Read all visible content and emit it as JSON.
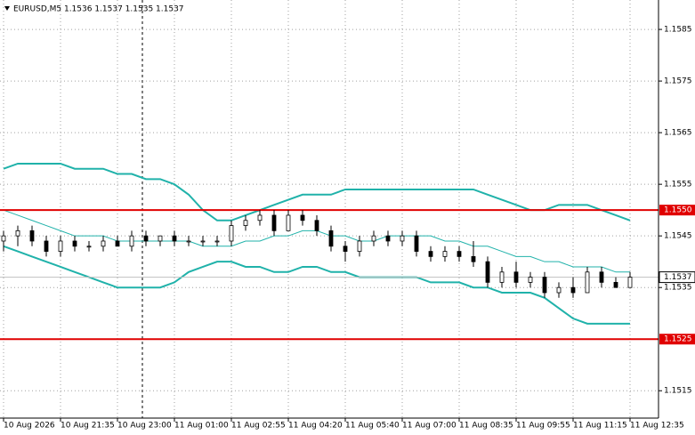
{
  "chart_data": {
    "type": "candlestick",
    "title": "EURUSD,M5  1.1536 1.1537 1.1535 1.1537",
    "categories": [
      "10 Aug 2026",
      null,
      null,
      null,
      "10 Aug 21:35",
      null,
      null,
      null,
      "10 Aug 23:00",
      null,
      null,
      null,
      "11 Aug 01:00",
      null,
      null,
      null,
      "11 Aug 02:55",
      null,
      null,
      null,
      "11 Aug 04:20",
      null,
      null,
      null,
      "11 Aug 05:40",
      null,
      null,
      null,
      "11 Aug 07:00",
      null,
      null,
      null,
      "11 Aug 08:35",
      null,
      null,
      null,
      "11 Aug 09:55",
      null,
      null,
      null,
      "11 Aug 11:15",
      null,
      null,
      null,
      "11 Aug 12:35"
    ],
    "open": [
      1.1544,
      1.1545,
      1.1546,
      1.1544,
      1.1542,
      1.1544,
      1.1543,
      1.1543,
      1.1544,
      1.1543,
      1.1545,
      1.1544,
      1.1545,
      1.1544,
      1.1544,
      1.1544,
      1.1544,
      1.1547,
      1.1548,
      1.1549,
      1.1546,
      1.1549,
      1.1548,
      1.1546,
      1.1543,
      1.1542,
      1.1544,
      1.1545,
      1.1544,
      1.1545,
      1.1542,
      1.1541,
      1.1542,
      1.1541,
      1.154,
      1.1536,
      1.1538,
      1.1536,
      1.1537,
      1.1534,
      1.1535,
      1.1534,
      1.1538,
      1.1536,
      1.1535
    ],
    "high": [
      1.1546,
      1.1547,
      1.1547,
      1.1545,
      1.1545,
      1.1545,
      1.1544,
      1.1545,
      1.1545,
      1.1546,
      1.1546,
      1.1545,
      1.1546,
      1.1545,
      1.1545,
      1.1545,
      1.1548,
      1.1549,
      1.155,
      1.155,
      1.155,
      1.155,
      1.1549,
      1.1547,
      1.1544,
      1.1545,
      1.1546,
      1.1546,
      1.1546,
      1.1546,
      1.1543,
      1.1543,
      1.1543,
      1.1544,
      1.1541,
      1.1539,
      1.154,
      1.1538,
      1.1538,
      1.1536,
      1.1537,
      1.1539,
      1.1539,
      1.1537,
      1.1538
    ],
    "low": [
      1.1542,
      1.1543,
      1.1543,
      1.1541,
      1.1541,
      1.1542,
      1.1542,
      1.1542,
      1.1543,
      1.1542,
      1.1543,
      1.1543,
      1.1543,
      1.1543,
      1.1543,
      1.1543,
      1.1543,
      1.1546,
      1.1547,
      1.1545,
      1.1546,
      1.1547,
      1.1545,
      1.1542,
      1.154,
      1.1541,
      1.1543,
      1.1543,
      1.1543,
      1.1541,
      1.154,
      1.154,
      1.154,
      1.1539,
      1.1535,
      1.1535,
      1.1535,
      1.1535,
      1.1533,
      1.1533,
      1.1533,
      1.1534,
      1.1535,
      1.1535,
      1.1535
    ],
    "close": [
      1.1545,
      1.1546,
      1.1544,
      1.1542,
      1.1544,
      1.1543,
      1.1543,
      1.1544,
      1.1543,
      1.1545,
      1.1544,
      1.1545,
      1.1544,
      1.1544,
      1.1544,
      1.1544,
      1.1547,
      1.1548,
      1.1549,
      1.1546,
      1.1549,
      1.1548,
      1.1546,
      1.1543,
      1.1542,
      1.1544,
      1.1545,
      1.1544,
      1.1545,
      1.1542,
      1.1541,
      1.1542,
      1.1541,
      1.154,
      1.1536,
      1.1538,
      1.1536,
      1.1537,
      1.1534,
      1.1535,
      1.1534,
      1.1538,
      1.1536,
      1.1535,
      1.1537
    ],
    "up_color": "#ffffff",
    "down_color": "#000000",
    "bands": [
      {
        "color": "#20b2aa",
        "values": [
          1.1558,
          1.1559,
          1.1559,
          1.1559,
          1.1559,
          1.1558,
          1.1558,
          1.1558,
          1.1557,
          1.1557,
          1.1556,
          1.1556,
          1.1555,
          1.1553,
          1.155,
          1.1548,
          1.1548,
          1.1549,
          1.155,
          1.1551,
          1.1552,
          1.1553,
          1.1553,
          1.1553,
          1.1554,
          1.1554,
          1.1554,
          1.1554,
          1.1554,
          1.1554,
          1.1554,
          1.1554,
          1.1554,
          1.1554,
          1.1553,
          1.1552,
          1.1551,
          1.155,
          1.155,
          1.1551,
          1.1551,
          1.1551,
          1.155,
          1.1549,
          1.1548
        ]
      },
      {
        "color": "#20b2aa",
        "values": [
          1.155,
          1.1549,
          1.1548,
          1.1547,
          1.1546,
          1.1545,
          1.1545,
          1.1545,
          1.1544,
          1.1544,
          1.1544,
          1.1544,
          1.1544,
          1.1544,
          1.1543,
          1.1543,
          1.1543,
          1.1544,
          1.1544,
          1.1545,
          1.1545,
          1.1546,
          1.1546,
          1.1545,
          1.1545,
          1.1544,
          1.1544,
          1.1545,
          1.1545,
          1.1545,
          1.1545,
          1.1544,
          1.1544,
          1.1543,
          1.1543,
          1.1542,
          1.1541,
          1.1541,
          1.154,
          1.154,
          1.1539,
          1.1539,
          1.1539,
          1.1538,
          1.1538
        ]
      },
      {
        "color": "#20b2aa",
        "values": [
          1.1543,
          1.1542,
          1.1541,
          1.154,
          1.1539,
          1.1538,
          1.1537,
          1.1536,
          1.1535,
          1.1535,
          1.1535,
          1.1535,
          1.1536,
          1.1538,
          1.1539,
          1.154,
          1.154,
          1.1539,
          1.1539,
          1.1538,
          1.1538,
          1.1539,
          1.1539,
          1.1538,
          1.1538,
          1.1537,
          1.1537,
          1.1537,
          1.1537,
          1.1537,
          1.1536,
          1.1536,
          1.1536,
          1.1535,
          1.1535,
          1.1534,
          1.1534,
          1.1534,
          1.1533,
          1.1531,
          1.1529,
          1.1528,
          1.1528,
          1.1528,
          1.1528
        ]
      }
    ],
    "levels": [
      {
        "value": 1.155,
        "label": "1.1550"
      },
      {
        "value": 1.1525,
        "label": "1.1525"
      }
    ],
    "level_color": "#e00000",
    "price": {
      "value": 1.1537,
      "label": "1.1537"
    },
    "ylim": [
      1.15097,
      1.15907
    ],
    "yticks": [
      1.1515,
      1.1535,
      1.1545,
      1.1555,
      1.1565,
      1.1575,
      1.1585
    ],
    "grid": true
  }
}
